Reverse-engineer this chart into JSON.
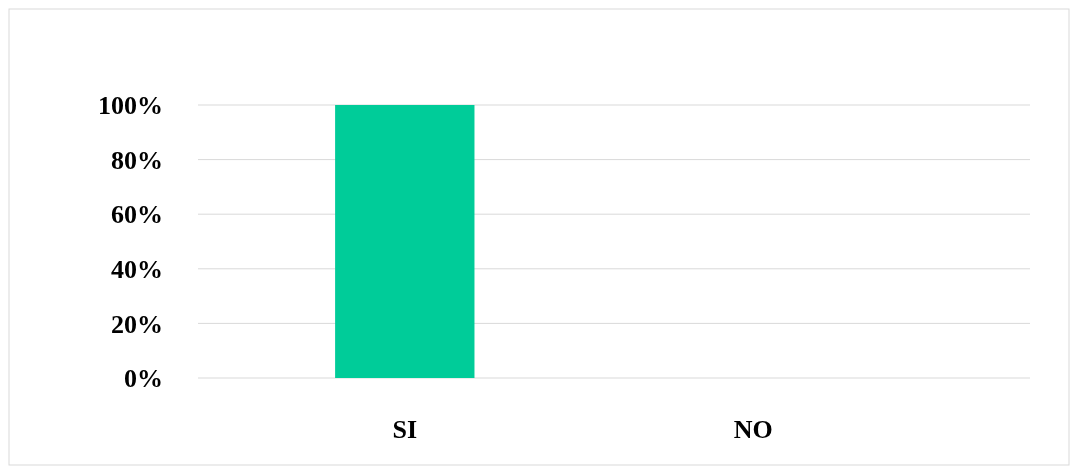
{
  "chart_data": {
    "type": "bar",
    "categories": [
      "SI",
      "NO"
    ],
    "values": [
      100,
      0
    ],
    "colors": [
      "#00cc99",
      "#cc0055"
    ],
    "ylim": [
      0,
      100
    ],
    "yticks": [
      {
        "value": 0,
        "label": "0%"
      },
      {
        "value": 20,
        "label": "20%"
      },
      {
        "value": 40,
        "label": "40%"
      },
      {
        "value": 60,
        "label": "60%"
      },
      {
        "value": 80,
        "label": "80%"
      },
      {
        "value": 100,
        "label": "100%"
      }
    ],
    "grid": true
  }
}
